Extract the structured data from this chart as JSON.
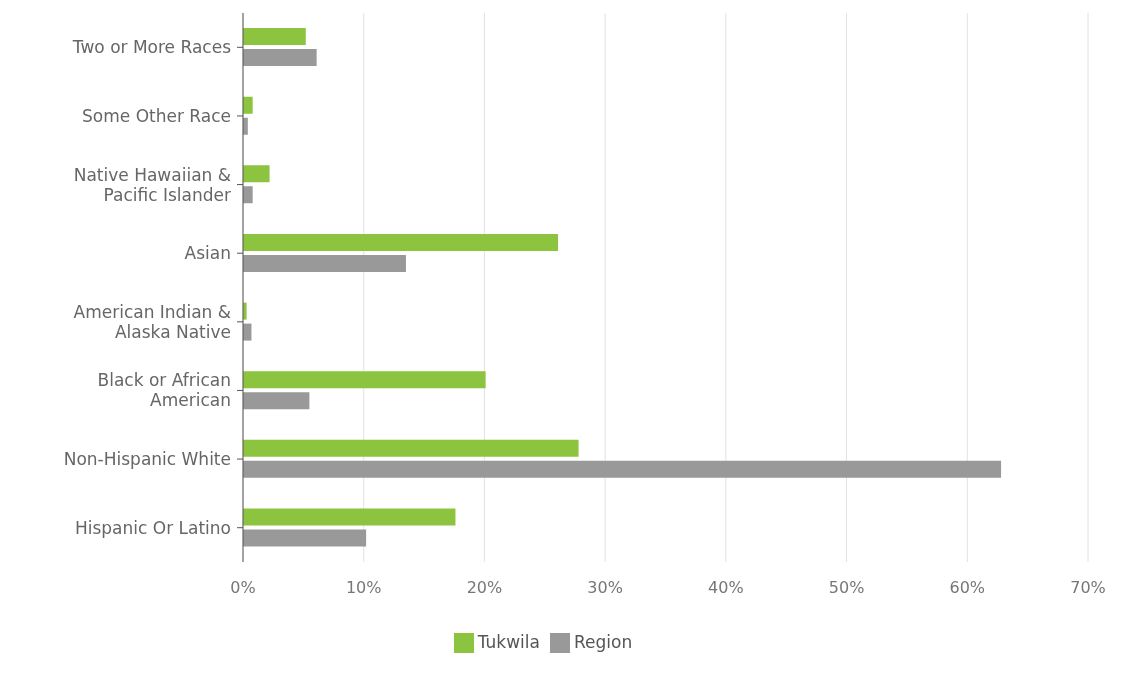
{
  "chart_data": {
    "type": "bar",
    "orientation": "horizontal",
    "categories": [
      "Two or More Races",
      "Some Other Race",
      "Native Hawaiian & Pacific Islander",
      "Asian",
      "American Indian & Alaska Native",
      "Black or African American",
      "Non-Hispanic White",
      "Hispanic Or Latino"
    ],
    "series": [
      {
        "name": "Tukwila",
        "color": "#8cc43f",
        "values": [
          5.2,
          0.8,
          2.2,
          26.1,
          0.3,
          20.1,
          27.8,
          17.6
        ]
      },
      {
        "name": "Region",
        "color": "#999999",
        "values": [
          6.1,
          0.4,
          0.8,
          13.5,
          0.7,
          5.5,
          62.8,
          10.2
        ]
      }
    ],
    "xlim": [
      0,
      70
    ],
    "xticks": [
      {
        "value": 0,
        "label": "0%"
      },
      {
        "value": 10,
        "label": "10%"
      },
      {
        "value": 20,
        "label": "20%"
      },
      {
        "value": 30,
        "label": "30%"
      },
      {
        "value": 40,
        "label": "40%"
      },
      {
        "value": 50,
        "label": "50%"
      },
      {
        "value": 60,
        "label": "60%"
      },
      {
        "value": 70,
        "label": "70%"
      }
    ],
    "grid": "x",
    "legend": "bottom"
  }
}
